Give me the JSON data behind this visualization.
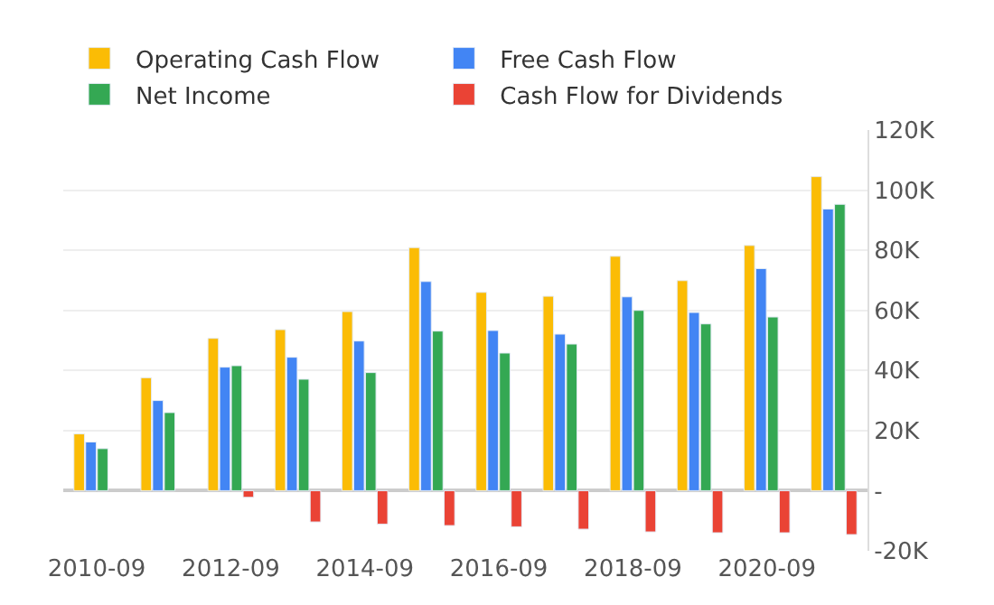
{
  "chart_data": {
    "type": "bar",
    "categories": [
      "2010-09",
      null,
      "2012-09",
      null,
      "2014-09",
      null,
      "2016-09",
      null,
      "2018-09",
      null,
      "2020-09",
      null
    ],
    "series": [
      {
        "name": "Operating Cash Flow",
        "color": "#fbbc05",
        "values": [
          18.9,
          37.6,
          50.7,
          53.6,
          59.6,
          80.9,
          66,
          64.7,
          78,
          69.9,
          81.6,
          104.5
        ]
      },
      {
        "name": "Free Cash Flow",
        "color": "#4285f4",
        "values": [
          16.2,
          30,
          41.1,
          44.4,
          49.8,
          69.6,
          53.3,
          52.1,
          64.5,
          59.3,
          73.9,
          93.7
        ]
      },
      {
        "name": "Net Income",
        "color": "#34a853",
        "values": [
          14,
          26,
          41.6,
          37.1,
          39.3,
          53.1,
          45.8,
          48.8,
          60,
          55.5,
          57.8,
          95.3
        ]
      },
      {
        "name": "Cash Flow for Dividends",
        "color": "#ea4335",
        "values": [
          null,
          null,
          -2.2,
          -10.4,
          -11.1,
          -11.6,
          -12,
          -12.8,
          -13.7,
          -14,
          -14,
          -14.6
        ]
      }
    ],
    "ylim": [
      -20,
      120
    ],
    "yticks": [
      {
        "value": -20,
        "label": "-20K"
      },
      {
        "value": 0,
        "label": "-"
      },
      {
        "value": 20,
        "label": "20K"
      },
      {
        "value": 40,
        "label": "40K"
      },
      {
        "value": 60,
        "label": "60K"
      },
      {
        "value": 80,
        "label": "80K"
      },
      {
        "value": 100,
        "label": "100K"
      },
      {
        "value": 120,
        "label": "120K"
      }
    ],
    "grid": "y",
    "legend": "top left"
  }
}
